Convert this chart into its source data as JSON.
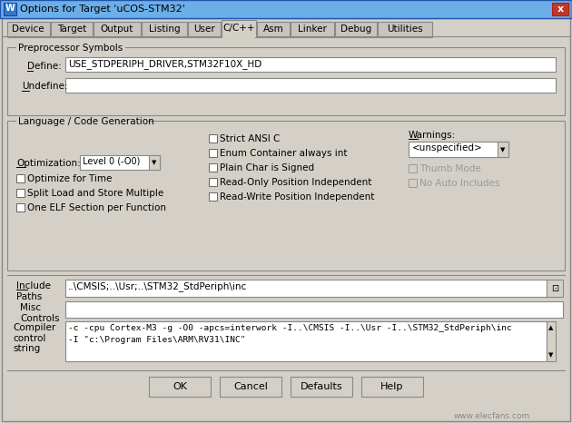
{
  "title": "Options for Target 'uCOS-STM32'",
  "bg_color": "#d4d0c8",
  "titlebar_color": "#5b9bd5",
  "tabs": [
    "Device",
    "Target",
    "Output",
    "Listing",
    "User",
    "C/C++",
    "Asm",
    "Linker",
    "Debug",
    "Utilities"
  ],
  "active_tab": "C/C++",
  "section1_title": "Preprocessor Symbols",
  "define_label": "Define:",
  "define_value": "USE_STDPERIPH_DRIVER,STM32F10X_HD",
  "undefine_label": "Undefine:",
  "section2_title": "Language / Code Generation",
  "optimization_label": "Optimization:",
  "optimization_value": "Level 0 (-O0)",
  "checkboxes_left": [
    "Optimize for Time",
    "Split Load and Store Multiple",
    "One ELF Section per Function"
  ],
  "checkboxes_mid": [
    "Strict ANSI C",
    "Enum Container always int",
    "Plain Char is Signed",
    "Read-Only Position Independent",
    "Read-Write Position Independent"
  ],
  "warnings_label": "Warnings:",
  "warnings_value": "<unspecified>",
  "checkboxes_right": [
    "Thumb Mode",
    "No Auto Includes"
  ],
  "include_paths_label": "Include\nPaths",
  "include_paths_value": "..\\CMSIS;..\\Usr;..\\STM32_StdPeriph\\inc",
  "misc_controls_label": "Misc\nControls",
  "compiler_label": "Compiler\ncontrol\nstring",
  "compiler_line1": "-c -cpu Cortex-M3 -g -O0 -apcs=interwork -I..\\CMSIS -I..\\Usr -I..\\STM32_StdPeriph\\inc",
  "compiler_line2": "-I \"c:\\Program Files\\ARM\\RV31\\INC\"",
  "buttons": [
    "OK",
    "Cancel",
    "Defaults",
    "Help"
  ],
  "watermark": "www.elecfans.com"
}
